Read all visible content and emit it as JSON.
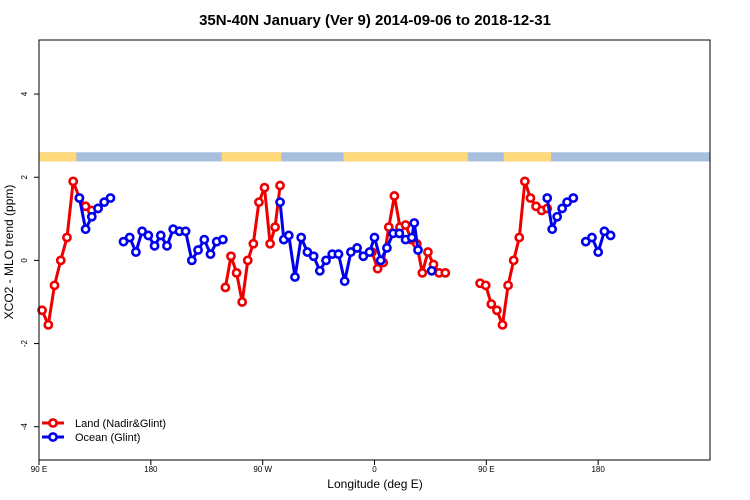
{
  "chart_data": {
    "type": "line",
    "title": "35N-40N January (Ver 9)   2014-09-06 to 2018-12-31",
    "xlabel": "Longitude (deg E)",
    "ylabel": "XCO2 - MLO trend (ppm)",
    "xlim": [
      0,
      540
    ],
    "ylim": [
      -4.8,
      5.3
    ],
    "x_ticks": [
      {
        "value": 0,
        "label": "90 E"
      },
      {
        "value": 90,
        "label": "180"
      },
      {
        "value": 180,
        "label": "90 W"
      },
      {
        "value": 270,
        "label": "0"
      },
      {
        "value": 360,
        "label": "90 E"
      },
      {
        "value": 450,
        "label": "180"
      }
    ],
    "y_ticks": [
      -4,
      -2,
      0,
      2,
      4
    ],
    "grid": false,
    "legend_position": "bottom-left",
    "land_ocean_strip": {
      "y_range": [
        2.38,
        2.6
      ],
      "land_color": "#FFD97A",
      "ocean_color": "#A7BFDD",
      "land_segments": [
        [
          0,
          30
        ],
        [
          147,
          195
        ],
        [
          245,
          345
        ],
        [
          374,
          412
        ]
      ]
    },
    "series": [
      {
        "name": "Land (Nadir&Glint)",
        "color": "#EE0000",
        "segments": [
          [
            [
              2.5,
              -1.2
            ],
            [
              7.5,
              -1.55
            ],
            [
              12.5,
              -0.6
            ],
            [
              17.5,
              0
            ],
            [
              22.5,
              0.55
            ],
            [
              27.5,
              1.9
            ],
            [
              32.5,
              1.5
            ],
            [
              37.5,
              1.3
            ],
            [
              42.5,
              1.2
            ],
            [
              47.5,
              1.25
            ]
          ],
          [
            [
              150,
              -0.65
            ],
            [
              154.5,
              0.1
            ],
            [
              159,
              -0.3
            ],
            [
              163.5,
              -1
            ],
            [
              168,
              0
            ],
            [
              172.5,
              0.4
            ],
            [
              177,
              1.4
            ],
            [
              181.5,
              1.75
            ],
            [
              186,
              0.4
            ],
            [
              190,
              0.8
            ],
            [
              194,
              1.8
            ]
          ],
          [
            [
              268,
              0.2
            ],
            [
              272.5,
              -0.2
            ],
            [
              277,
              -0.05
            ],
            [
              281.5,
              0.8
            ],
            [
              286,
              1.55
            ],
            [
              290.5,
              0.8
            ],
            [
              295,
              0.85
            ],
            [
              299.5,
              0.5
            ],
            [
              304,
              0.4
            ],
            [
              308.5,
              -0.3
            ],
            [
              313,
              0.2
            ],
            [
              317.5,
              -0.1
            ],
            [
              322,
              -0.3
            ],
            [
              327,
              -0.3
            ]
          ],
          [
            [
              355,
              -0.55
            ],
            [
              359.5,
              -0.6
            ],
            [
              364,
              -1.05
            ],
            [
              368.5,
              -1.2
            ],
            [
              373,
              -1.55
            ],
            [
              377.5,
              -0.6
            ],
            [
              382,
              0
            ],
            [
              386.5,
              0.55
            ],
            [
              391,
              1.9
            ],
            [
              395.5,
              1.5
            ],
            [
              400,
              1.3
            ],
            [
              404.5,
              1.2
            ],
            [
              409,
              1.25
            ]
          ]
        ]
      },
      {
        "name": "Ocean (Glint)",
        "color": "#0000EE",
        "segments": [
          [
            [
              32.5,
              1.5
            ],
            [
              37.5,
              0.75
            ],
            [
              42.5,
              1.05
            ],
            [
              47.5,
              1.25
            ],
            [
              52.5,
              1.4
            ],
            [
              57.5,
              1.5
            ]
          ],
          [
            [
              68,
              0.45
            ],
            [
              73,
              0.55
            ],
            [
              78,
              0.2
            ],
            [
              83,
              0.7
            ],
            [
              88,
              0.6
            ],
            [
              93,
              0.35
            ],
            [
              98,
              0.6
            ],
            [
              103,
              0.35
            ],
            [
              108,
              0.75
            ],
            [
              113,
              0.7
            ],
            [
              118,
              0.7
            ],
            [
              123,
              0
            ],
            [
              128,
              0.25
            ],
            [
              133,
              0.5
            ],
            [
              138,
              0.15
            ],
            [
              143,
              0.45
            ],
            [
              148,
              0.5
            ]
          ],
          [
            [
              194,
              1.4
            ],
            [
              197,
              0.5
            ],
            [
              201,
              0.6
            ],
            [
              206,
              -0.4
            ],
            [
              211,
              0.55
            ],
            [
              216,
              0.2
            ],
            [
              221,
              0.1
            ],
            [
              226,
              -0.25
            ],
            [
              231,
              0
            ],
            [
              236,
              0.15
            ],
            [
              241,
              0.15
            ],
            [
              246,
              -0.5
            ],
            [
              251,
              0.2
            ],
            [
              256,
              0.3
            ],
            [
              261,
              0.1
            ],
            [
              266,
              0.2
            ],
            [
              270,
              0.55
            ],
            [
              275,
              0
            ],
            [
              280,
              0.3
            ],
            [
              285,
              0.65
            ],
            [
              290,
              0.65
            ],
            [
              295,
              0.5
            ],
            [
              300,
              0.55
            ],
            [
              302,
              0.9
            ],
            [
              305,
              0.25
            ]
          ],
          [
            [
              316,
              -0.25
            ]
          ],
          [
            [
              409,
              1.5
            ],
            [
              413,
              0.75
            ],
            [
              417,
              1.05
            ],
            [
              421,
              1.25
            ],
            [
              425,
              1.4
            ],
            [
              430,
              1.5
            ]
          ],
          [
            [
              440,
              0.45
            ],
            [
              445,
              0.55
            ],
            [
              450,
              0.2
            ],
            [
              455,
              0.7
            ],
            [
              460,
              0.6
            ]
          ]
        ]
      }
    ]
  }
}
